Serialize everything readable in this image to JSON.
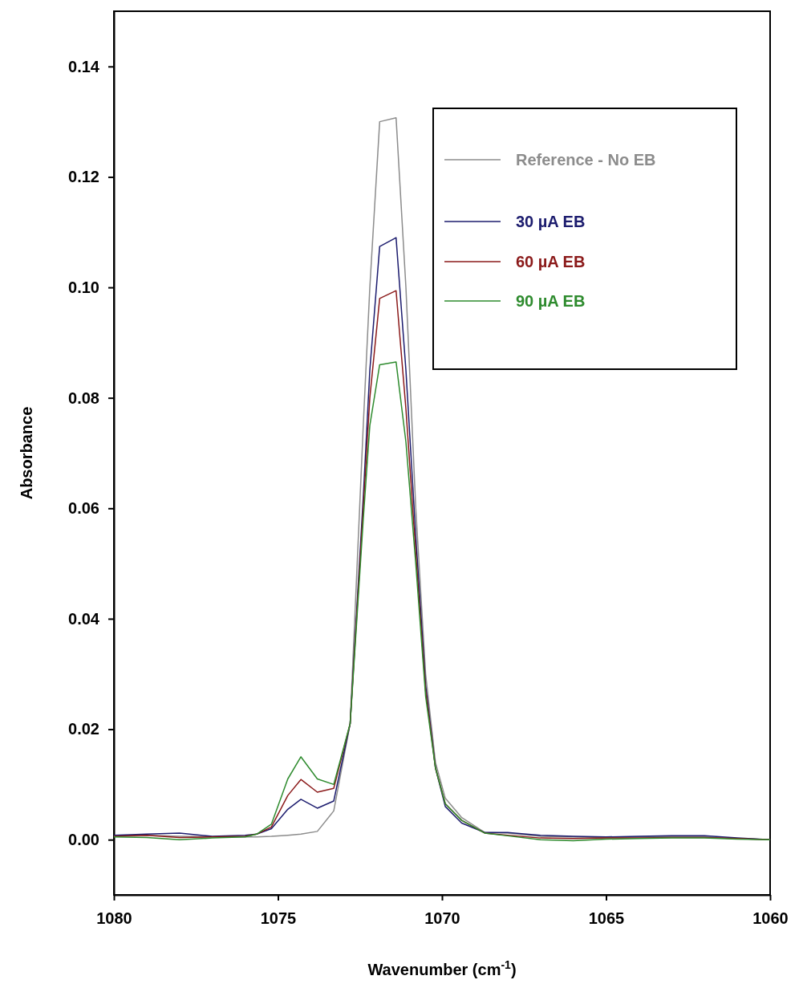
{
  "chart_data": {
    "type": "line",
    "xlabel": "Wavenumber (cm$^{-1}$)",
    "ylabel": "Absorbance",
    "x": [
      1080,
      1079,
      1078,
      1077,
      1076,
      1075.65,
      1075.2,
      1074.7,
      1074.3,
      1073.8,
      1073.3,
      1072.8,
      1072.4,
      1072.2,
      1071.9,
      1071.4,
      1071.1,
      1070.8,
      1070.5,
      1070.2,
      1069.9,
      1069.4,
      1068.7,
      1068,
      1067,
      1066,
      1065,
      1064,
      1063,
      1062,
      1061,
      1060
    ],
    "series": [
      {
        "name": "Reference - No EB",
        "color": "#8c8c8c",
        "values": [
          0.0008,
          0.0008,
          0.0006,
          0.0005,
          0.0005,
          0.0005,
          0.0006,
          0.0008,
          0.001,
          0.0015,
          0.0052,
          0.021,
          0.075,
          0.1,
          0.13,
          0.1307,
          0.1,
          0.06,
          0.03,
          0.014,
          0.0075,
          0.004,
          0.0013,
          0.0012,
          0.0006,
          0.0005,
          0.0004,
          0.0005,
          0.0006,
          0.0005,
          0.0002,
          0.0
        ]
      },
      {
        "name": "30 µA EB",
        "color": "#1c1c6e",
        "values": [
          0.0008,
          0.001,
          0.0012,
          0.0006,
          0.0008,
          0.001,
          0.002,
          0.0055,
          0.0073,
          0.0057,
          0.007,
          0.021,
          0.062,
          0.085,
          0.1074,
          0.109,
          0.085,
          0.055,
          0.028,
          0.013,
          0.006,
          0.003,
          0.0013,
          0.0013,
          0.0008,
          0.0006,
          0.0005,
          0.0006,
          0.0007,
          0.0007,
          0.0003,
          0.0
        ]
      },
      {
        "name": "60 µA EB",
        "color": "#8b1a1a",
        "values": [
          0.0006,
          0.0008,
          0.0004,
          0.0005,
          0.0006,
          0.001,
          0.0023,
          0.008,
          0.0109,
          0.0086,
          0.0093,
          0.021,
          0.06,
          0.08,
          0.098,
          0.0994,
          0.078,
          0.052,
          0.027,
          0.013,
          0.0065,
          0.0035,
          0.0012,
          0.0008,
          0.0003,
          0.0002,
          0.0003,
          0.0003,
          0.0004,
          0.0004,
          0.0002,
          0.0
        ]
      },
      {
        "name": "90 µA EB",
        "color": "#2e8b2e",
        "values": [
          0.0005,
          0.0004,
          0.0,
          0.0003,
          0.0005,
          0.001,
          0.0028,
          0.011,
          0.015,
          0.011,
          0.01,
          0.021,
          0.058,
          0.075,
          0.086,
          0.0865,
          0.072,
          0.05,
          0.026,
          0.013,
          0.0065,
          0.0035,
          0.0012,
          0.0007,
          0.0,
          -0.0002,
          0.0001,
          0.0002,
          0.0003,
          0.0003,
          0.0001,
          0.0
        ]
      }
    ],
    "xlim": [
      1080,
      1060
    ],
    "xticks": [
      1080,
      1075,
      1070,
      1065,
      1060
    ],
    "ylim": [
      -0.01,
      0.15
    ],
    "yticks": [
      {
        "value": 0,
        "label": "0.00"
      },
      {
        "value": 0.02,
        "label": "0.02"
      },
      {
        "value": 0.04,
        "label": "0.04"
      },
      {
        "value": 0.06,
        "label": "0.06"
      },
      {
        "value": 0.08,
        "label": "0.08"
      },
      {
        "value": 0.1,
        "label": "0.10"
      },
      {
        "value": 0.12,
        "label": "0.12"
      },
      {
        "value": 0.14,
        "label": "0.14"
      }
    ],
    "legend": "top right",
    "grid": false
  }
}
